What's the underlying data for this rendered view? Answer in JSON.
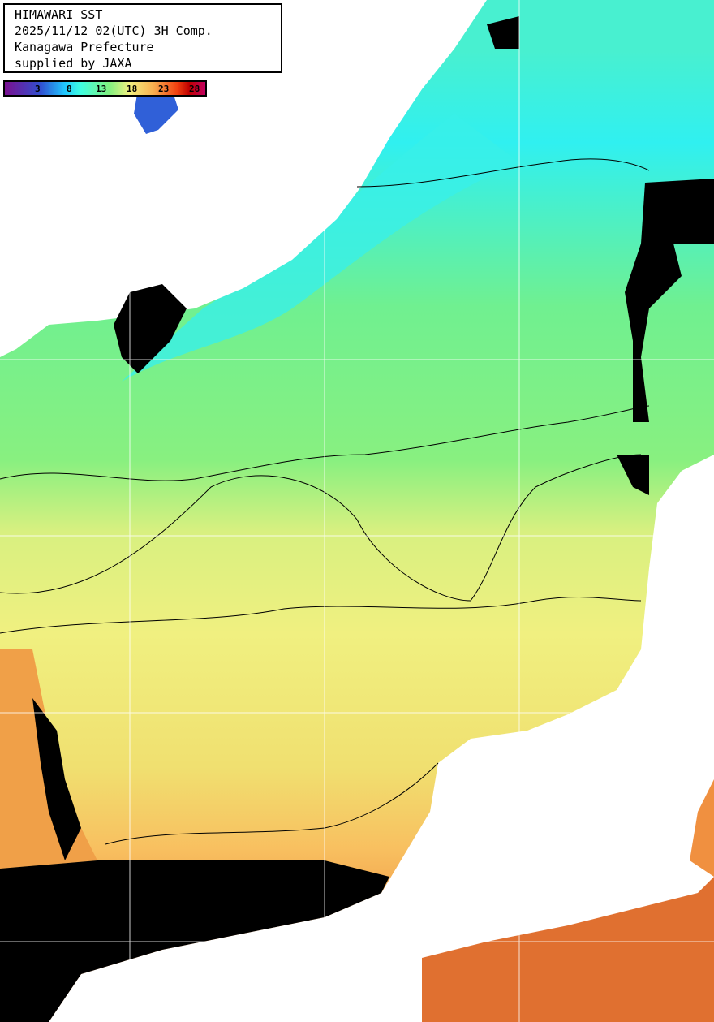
{
  "header": {
    "lines": [
      "HIMAWARI SST",
      "2025/11/12 02(UTC) 3H Comp.",
      "Kanagawa Prefecture",
      "supplied by JAXA"
    ]
  },
  "colorbar": {
    "ticks": [
      "3",
      "8",
      "13",
      "18",
      "23",
      "28"
    ],
    "colors": [
      "#7a1090",
      "#3050d0",
      "#20c8ff",
      "#80f080",
      "#f0f080",
      "#f8b050",
      "#f04010",
      "#c00060"
    ]
  },
  "map": {
    "land_color": "#ffffff",
    "cloud_color": "#000000",
    "sea_colors": [
      "#30f0f0",
      "#60f0a0",
      "#88f080",
      "#f0f080",
      "#f8c060",
      "#f09040"
    ]
  }
}
